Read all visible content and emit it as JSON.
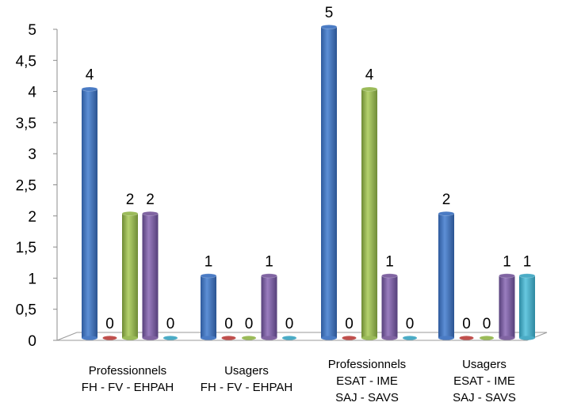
{
  "chart_data": {
    "type": "bar",
    "categories": [
      [
        "Professionnels",
        "FH - FV - EHPAH"
      ],
      [
        "Usagers",
        "FH - FV - EHPAH"
      ],
      [
        "Professionnels",
        "ESAT - IME",
        "SAJ - SAVS"
      ],
      [
        "Usagers",
        "ESAT - IME",
        "SAJ - SAVS"
      ]
    ],
    "series": [
      {
        "values": [
          4,
          1,
          5,
          2
        ],
        "color": "#4a7bc4"
      },
      {
        "values": [
          0,
          0,
          0,
          0
        ],
        "color": "#c0504d"
      },
      {
        "values": [
          2,
          0,
          4,
          0
        ],
        "color": "#9bbb59"
      },
      {
        "values": [
          2,
          1,
          1,
          1
        ],
        "color": "#8064a2"
      },
      {
        "values": [
          0,
          0,
          0,
          1
        ],
        "color": "#4bacc6"
      }
    ],
    "ylim": [
      0,
      5
    ],
    "yticks": [
      "0",
      "0,5",
      "1",
      "1,5",
      "2",
      "2,5",
      "3",
      "3,5",
      "4",
      "4,5",
      "5"
    ],
    "data_labels": [
      [
        "4",
        "0",
        "2",
        "2",
        "0"
      ],
      [
        "1",
        "0",
        "0",
        "1",
        "0"
      ],
      [
        "5",
        "0",
        "4",
        "1",
        "0"
      ],
      [
        "2",
        "0",
        "0",
        "1",
        "1"
      ]
    ],
    "grid": false,
    "legend": "none"
  }
}
